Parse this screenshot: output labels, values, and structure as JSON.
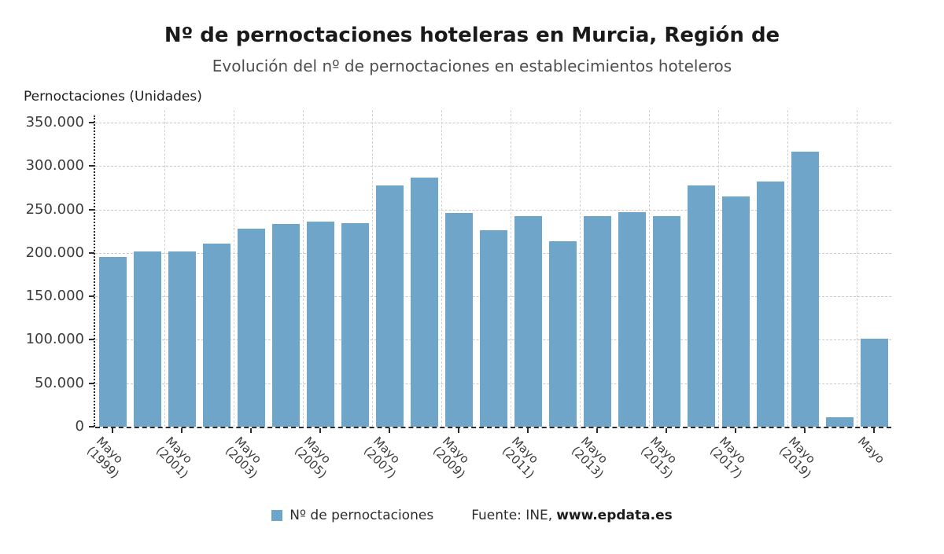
{
  "chart_data": {
    "type": "bar",
    "title": "Nº de pernoctaciones hoteleras en Murcia, Región de",
    "subtitle": "Evolución del nº de pernoctaciones en establecimientos hoteleros",
    "ylabel": "Pernoctaciones (Unidades)",
    "xlabel": "",
    "ylim": [
      0,
      350000
    ],
    "grid": true,
    "legend_position": "bottom",
    "legend": [
      "Nº de pernoctaciones"
    ],
    "bar_color": "#6FA5C9",
    "values": [
      195000,
      201500,
      202000,
      210500,
      227500,
      233500,
      236000,
      234500,
      277500,
      287000,
      246000,
      226000,
      242500,
      213500,
      242000,
      246500,
      242500,
      278000,
      265000,
      282000,
      316500,
      11000,
      101000
    ],
    "yticks": [
      {
        "value": 0,
        "label": "0"
      },
      {
        "value": 50000,
        "label": "50.000"
      },
      {
        "value": 100000,
        "label": "100.000"
      },
      {
        "value": 150000,
        "label": "150.000"
      },
      {
        "value": 200000,
        "label": "200.000"
      },
      {
        "value": 250000,
        "label": "250.000"
      },
      {
        "value": 300000,
        "label": "300.000"
      },
      {
        "value": 350000,
        "label": "350.000"
      }
    ],
    "xticks": [
      {
        "index": 0,
        "label": "Mayo (1999)",
        "lines": [
          "Mayo",
          "(1999)"
        ]
      },
      {
        "index": 2,
        "label": "Mayo (2001)",
        "lines": [
          "Mayo",
          "(2001)"
        ]
      },
      {
        "index": 4,
        "label": "Mayo (2003)",
        "lines": [
          "Mayo",
          "(2003)"
        ]
      },
      {
        "index": 6,
        "label": "Mayo (2005)",
        "lines": [
          "Mayo",
          "(2005)"
        ]
      },
      {
        "index": 8,
        "label": "Mayo (2007)",
        "lines": [
          "Mayo",
          "(2007)"
        ]
      },
      {
        "index": 10,
        "label": "Mayo (2009)",
        "lines": [
          "Mayo",
          "(2009)"
        ]
      },
      {
        "index": 12,
        "label": "Mayo (2011)",
        "lines": [
          "Mayo",
          "(2011)"
        ]
      },
      {
        "index": 14,
        "label": "Mayo (2013)",
        "lines": [
          "Mayo",
          "(2013)"
        ]
      },
      {
        "index": 16,
        "label": "Mayo (2015)",
        "lines": [
          "Mayo",
          "(2015)"
        ]
      },
      {
        "index": 18,
        "label": "Mayo (2017)",
        "lines": [
          "Mayo",
          "(2017)"
        ]
      },
      {
        "index": 20,
        "label": "Mayo (2019)",
        "lines": [
          "Mayo",
          "(2019)"
        ]
      },
      {
        "index": 22,
        "label": "Mayo",
        "lines": [
          "Mayo"
        ]
      }
    ]
  },
  "footer": {
    "source_prefix": "Fuente: INE,",
    "source_link": "www.epdata.es"
  },
  "colors": {
    "bar": "#6FA5C9",
    "title": "#1A1A1A",
    "subtitle": "#4F4F4F",
    "axis": "#2B2B2B",
    "gridline": "#C9C9C9"
  }
}
